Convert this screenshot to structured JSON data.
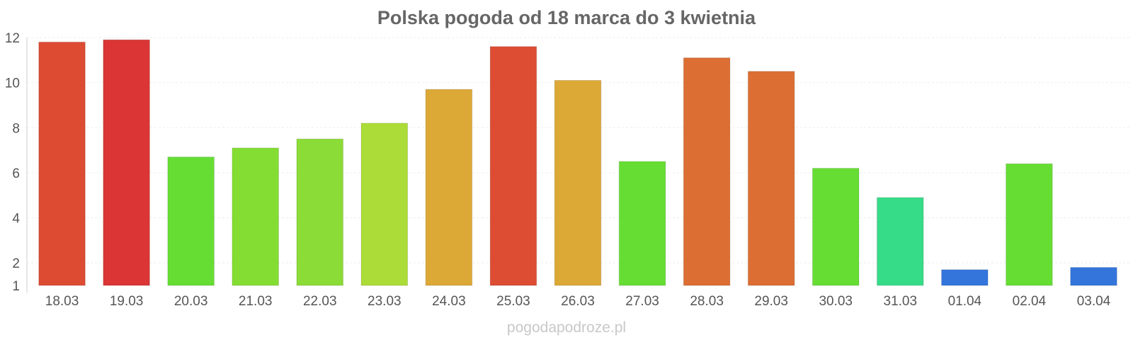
{
  "chart_data": {
    "type": "bar",
    "title": "Polska pogoda od 18 marca do 3 kwietnia",
    "xlabel": "",
    "ylabel": "",
    "ylim": [
      1,
      12
    ],
    "yticks": [
      1,
      2,
      4,
      6,
      8,
      10,
      12
    ],
    "grid": true,
    "categories": [
      "18.03",
      "19.03",
      "20.03",
      "21.03",
      "22.03",
      "23.03",
      "24.03",
      "25.03",
      "26.03",
      "27.03",
      "28.03",
      "29.03",
      "30.03",
      "31.03",
      "01.04",
      "02.04",
      "03.04"
    ],
    "values": [
      11.8,
      11.9,
      6.7,
      7.1,
      7.5,
      8.2,
      9.7,
      11.6,
      10.1,
      6.5,
      11.1,
      10.5,
      6.2,
      4.9,
      1.7,
      6.4,
      1.8
    ],
    "colors": [
      "#dd4b33",
      "#db3535",
      "#66dd33",
      "#83dd33",
      "#8bdc37",
      "#acdc37",
      "#dca836",
      "#dc4d33",
      "#dca836",
      "#66dd33",
      "#dc6e33",
      "#dc6e33",
      "#66dd33",
      "#36dc88",
      "#3475dc",
      "#66dd33",
      "#3475dc"
    ]
  },
  "footer": {
    "watermark": "pogodapodroze.pl"
  }
}
